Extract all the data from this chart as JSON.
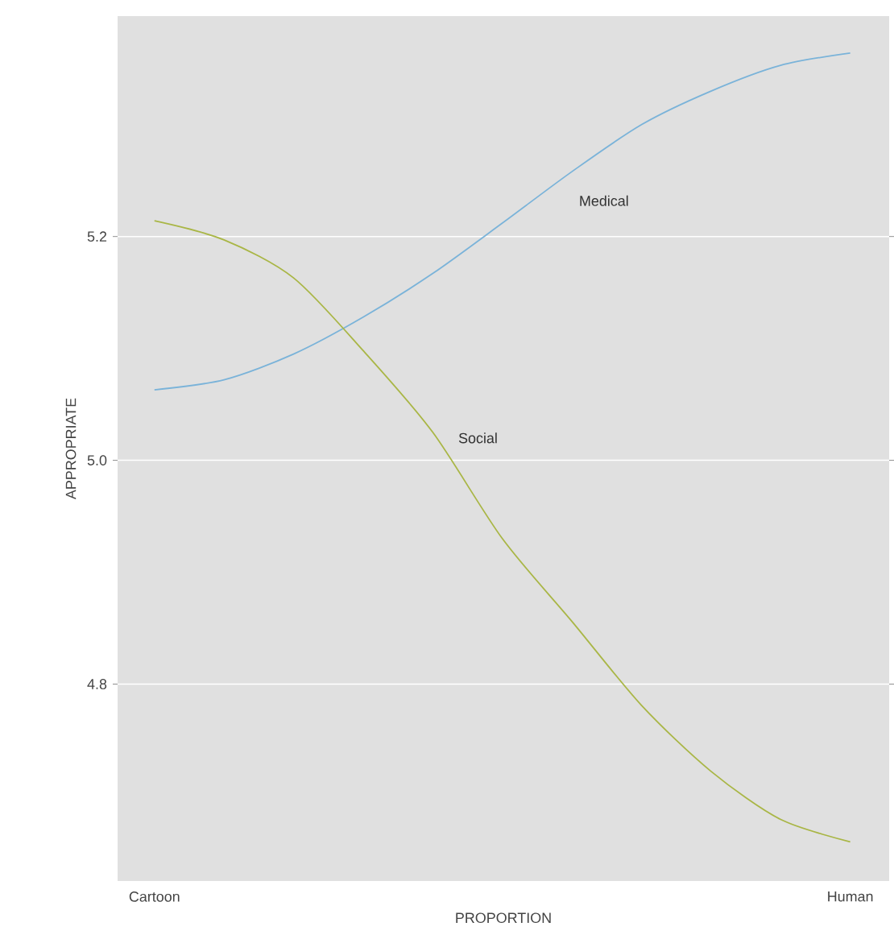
{
  "chart_data": {
    "type": "line",
    "xlabel": "PROPORTION",
    "ylabel": "APPROPRIATE",
    "categories": [
      "Cartoon",
      null,
      null,
      null,
      null,
      null,
      null,
      null,
      null,
      null,
      "Human"
    ],
    "ylim": [
      4.624,
      5.397
    ],
    "yticks": [
      {
        "value": 4.8,
        "label": "4.8"
      },
      {
        "value": 5.0,
        "label": "5.0"
      },
      {
        "value": 5.2,
        "label": "5.2"
      }
    ],
    "grid": "y",
    "legend": false,
    "series": [
      {
        "name": "Medical",
        "color": "#7ab3d9",
        "values": [
          5.063,
          5.072,
          5.095,
          5.128,
          5.167,
          5.212,
          5.258,
          5.3,
          5.33,
          5.353,
          5.364
        ]
      },
      {
        "name": "Social",
        "color": "#a9b646",
        "values": [
          5.214,
          5.197,
          5.163,
          5.098,
          5.025,
          4.93,
          4.856,
          4.781,
          4.722,
          4.679,
          4.659
        ]
      }
    ]
  }
}
